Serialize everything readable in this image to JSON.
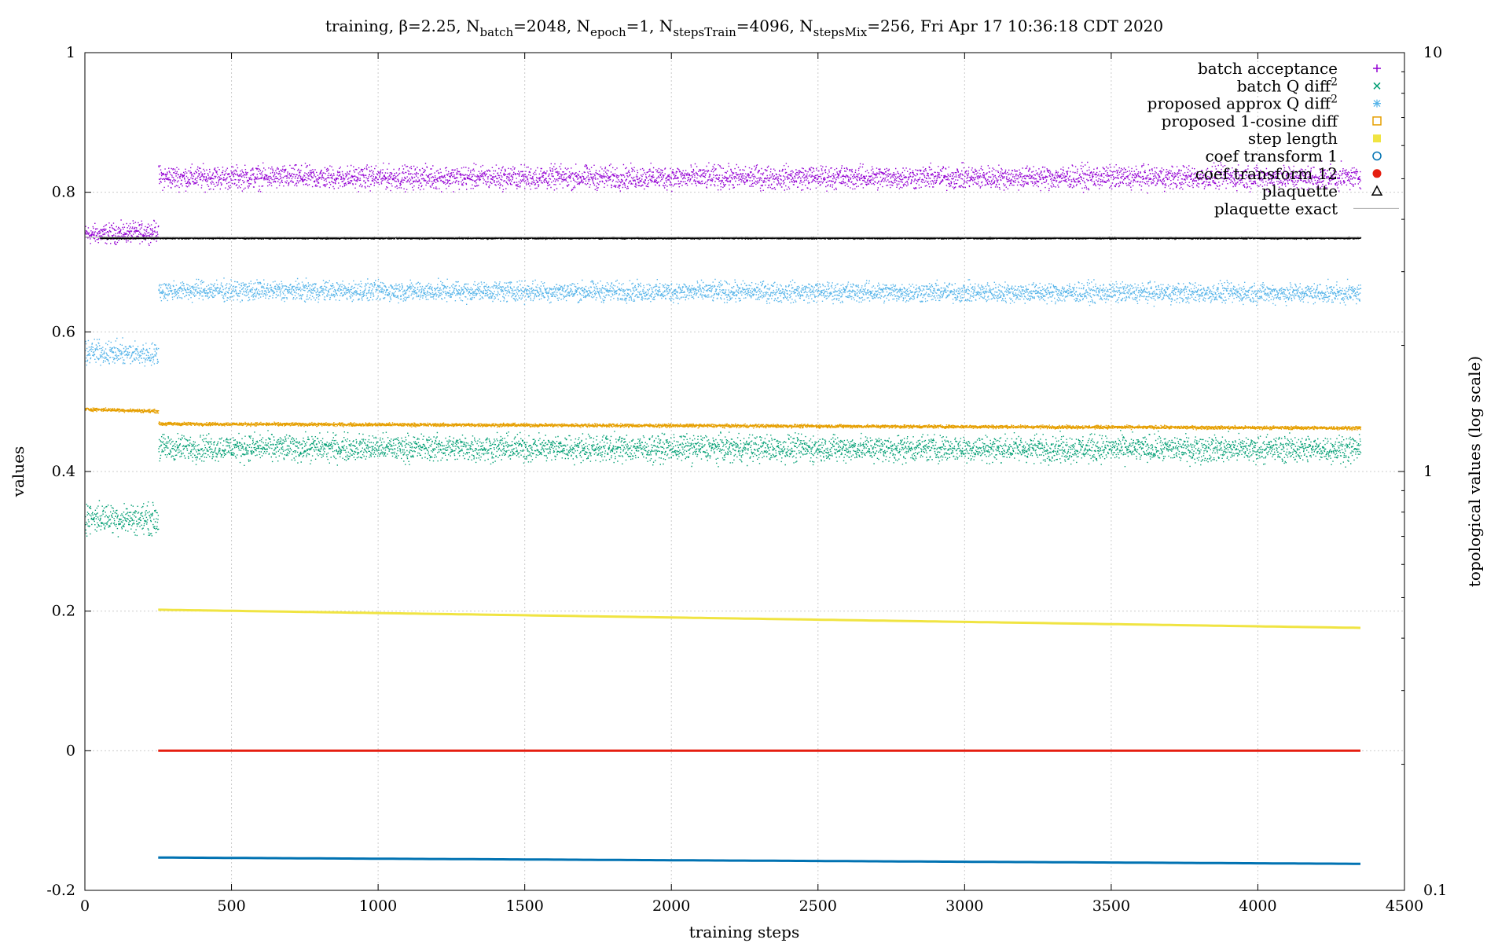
{
  "chart_data": {
    "type": "scatter",
    "title": {
      "prefix": "training, β=2.25, N",
      "sub_batch": "batch",
      "mid1": "=2048, N",
      "sub_epoch": "epoch",
      "mid2": "=1, N",
      "sub_train": "stepsTrain",
      "mid3": "=4096, N",
      "sub_mix": "stepsMix",
      "suffix": "=256, Fri Apr 17 10:36:18 CDT 2020"
    },
    "xlabel": "training steps",
    "ylabel": "values",
    "y2label": "topological values (log scale)",
    "xlim": [
      0,
      4500
    ],
    "ylim": [
      -0.2,
      1
    ],
    "y2lim": [
      0.1,
      10
    ],
    "y2scale": "log",
    "grid": true,
    "legend_position": "top-right",
    "x_ticks": [
      "0",
      "500",
      "1000",
      "1500",
      "2000",
      "2500",
      "3000",
      "3500",
      "4000",
      "4500"
    ],
    "y_ticks": [
      "-0.2",
      "0",
      "0.2",
      "0.4",
      "0.6",
      "0.8",
      "1"
    ],
    "y2_ticks": [
      "0.1",
      "1",
      "10"
    ],
    "series": [
      {
        "name": "batch acceptance",
        "sup": "",
        "marker": "plus",
        "color": "#9400d3",
        "segments": [
          {
            "x": [
              0,
              250
            ],
            "y": [
              0.74,
              0.745
            ],
            "noise": 0.012
          },
          {
            "x": [
              250,
              4350
            ],
            "y": [
              0.822,
              0.822
            ],
            "noise": 0.014
          }
        ]
      },
      {
        "name": "batch Q diff",
        "sup": "2",
        "marker": "cross",
        "color": "#009e73",
        "segments": [
          {
            "x": [
              0,
              250
            ],
            "y": [
              0.335,
              0.332
            ],
            "noise": 0.018
          },
          {
            "x": [
              250,
              4350
            ],
            "y": [
              0.435,
              0.433
            ],
            "noise": 0.016
          }
        ]
      },
      {
        "name": "proposed approx Q diff",
        "sup": "2",
        "marker": "star",
        "color": "#56b4e9",
        "segments": [
          {
            "x": [
              0,
              250
            ],
            "y": [
              0.572,
              0.568
            ],
            "noise": 0.014
          },
          {
            "x": [
              250,
              4350
            ],
            "y": [
              0.66,
              0.656
            ],
            "noise": 0.012
          }
        ]
      },
      {
        "name": "proposed 1-cosine diff",
        "sup": "",
        "marker": "square",
        "color": "#e69f00",
        "segments": [
          {
            "x": [
              0,
              250
            ],
            "y": [
              0.49,
              0.487
            ],
            "noise": 0.002
          },
          {
            "x": [
              250,
              4350
            ],
            "y": [
              0.469,
              0.463
            ],
            "noise": 0.002
          }
        ]
      },
      {
        "name": "step length",
        "sup": "",
        "marker": "filled-square",
        "color": "#f0e442",
        "segments": [
          {
            "x": [
              250,
              4350
            ],
            "y": [
              0.202,
              0.176
            ],
            "noise": 0.0
          }
        ]
      },
      {
        "name": "coef transform 1",
        "sup": "",
        "marker": "circle",
        "color": "#0072b2",
        "segments": [
          {
            "x": [
              250,
              4350
            ],
            "y": [
              -0.153,
              -0.162
            ],
            "noise": 0.0
          }
        ]
      },
      {
        "name": "coef transform 12",
        "sup": "",
        "marker": "filled-circle",
        "color": "#e51e10",
        "segments": [
          {
            "x": [
              250,
              4350
            ],
            "y": [
              0.0,
              0.0
            ],
            "noise": 0.0
          }
        ]
      },
      {
        "name": "plaquette",
        "sup": "",
        "marker": "triangle",
        "color": "#000000",
        "segments": [
          {
            "x": [
              50,
              4350
            ],
            "y": [
              0.735,
              0.735
            ],
            "noise": 0.001
          }
        ]
      },
      {
        "name": "plaquette exact",
        "sup": "",
        "marker": "line",
        "color": "#a0a0a0",
        "segments": [
          {
            "x": [
              0,
              4350
            ],
            "y": [
              0.7356,
              0.7356
            ],
            "noise": 0.0
          }
        ]
      }
    ]
  }
}
